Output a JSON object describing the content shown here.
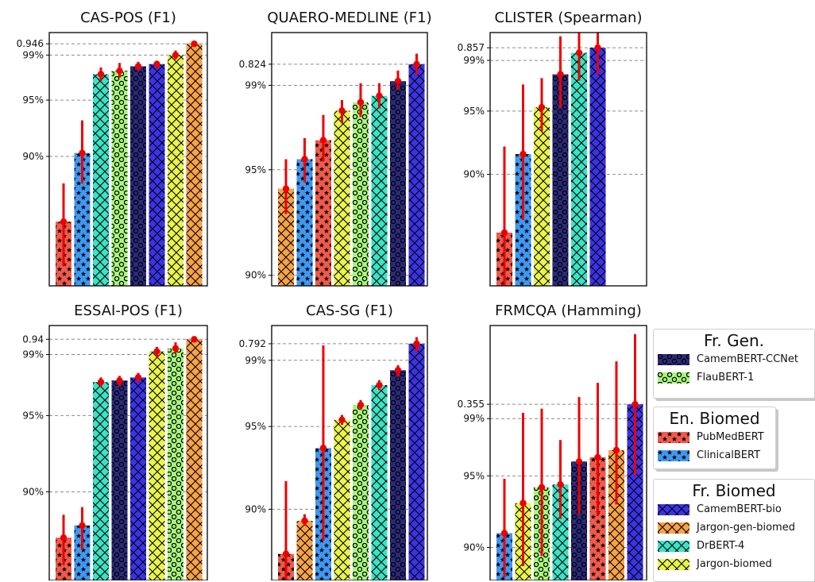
{
  "colors": {
    "CamemBERT-CCNet": "#2b2a7a",
    "FlauBERT-1": "#a8f57c",
    "PubMedBERT": "#f05a4a",
    "ClinicalBERT": "#3f98f2",
    "CamemBERT-bio": "#3b33e6",
    "Jargon-gen-biomed": "#f7a348",
    "DrBERT-4": "#3be3c5",
    "Jargon-biomed": "#eaf54c",
    "error_bar": "#ee0000",
    "reference_line": "#8c8c8c"
  },
  "patterns": {
    "CamemBERT-CCNet": "circles",
    "FlauBERT-1": "circles",
    "PubMedBERT": "stars",
    "ClinicalBERT": "stars",
    "CamemBERT-bio": "cross",
    "Jargon-gen-biomed": "cross",
    "DrBERT-4": "cross",
    "Jargon-biomed": "cross"
  },
  "legend": [
    {
      "title": "Fr. Gen.",
      "items": [
        "CamemBERT-CCNet",
        "FlauBERT-1"
      ]
    },
    {
      "title": "En. Biomed",
      "items": [
        "PubMedBERT",
        "ClinicalBERT"
      ]
    },
    {
      "title": "Fr. Biomed",
      "items": [
        "CamemBERT-bio",
        "Jargon-gen-biomed",
        "DrBERT-4",
        "Jargon-biomed"
      ]
    }
  ],
  "chart_data": [
    {
      "type": "bar",
      "title": "CAS-POS (F1)",
      "best_value_label": "0.946",
      "yticks": [
        "99%",
        "95%",
        "90%"
      ],
      "ylim": [
        78.5,
        101
      ],
      "series": [
        {
          "model": "PubMedBERT",
          "value": 84.2,
          "err": [
            80.3,
            87.6
          ]
        },
        {
          "model": "ClinicalBERT",
          "value": 90.3,
          "err": [
            87.6,
            93.2
          ]
        },
        {
          "model": "DrBERT-4",
          "value": 97.3,
          "err": [
            96.7,
            97.9
          ]
        },
        {
          "model": "FlauBERT-1",
          "value": 97.6,
          "err": [
            97.0,
            98.3
          ]
        },
        {
          "model": "CamemBERT-CCNet",
          "value": 98.0,
          "err": [
            97.6,
            98.4
          ]
        },
        {
          "model": "CamemBERT-bio",
          "value": 98.2,
          "err": [
            97.8,
            98.5
          ]
        },
        {
          "model": "Jargon-biomed",
          "value": 99.0,
          "err": [
            98.6,
            99.4
          ]
        },
        {
          "model": "Jargon-gen-biomed",
          "value": 100,
          "err": [
            100,
            100
          ]
        }
      ]
    },
    {
      "type": "bar",
      "title": "QUAERO-MEDLINE (F1)",
      "best_value_label": "0.824",
      "yticks": [
        "99%",
        "95%",
        "90%"
      ],
      "ylim": [
        89.5,
        101.5
      ],
      "series": [
        {
          "model": "Jargon-gen-biomed",
          "value": 94.1,
          "err": [
            92.9,
            95.5
          ]
        },
        {
          "model": "ClinicalBERT",
          "value": 95.5,
          "err": [
            94.4,
            96.5
          ]
        },
        {
          "model": "PubMedBERT",
          "value": 96.4,
          "err": [
            95.4,
            97.6
          ]
        },
        {
          "model": "Jargon-biomed",
          "value": 97.8,
          "err": [
            97.2,
            98.3
          ]
        },
        {
          "model": "FlauBERT-1",
          "value": 98.2,
          "err": [
            97.5,
            99.1
          ]
        },
        {
          "model": "DrBERT-4",
          "value": 98.5,
          "err": [
            97.9,
            99.1
          ]
        },
        {
          "model": "CamemBERT-CCNet",
          "value": 99.2,
          "err": [
            98.8,
            99.7
          ]
        },
        {
          "model": "CamemBERT-bio",
          "value": 100,
          "err": [
            99.5,
            100.5
          ]
        }
      ]
    },
    {
      "type": "bar",
      "title": "CLISTER (Spearman)",
      "best_value_label": "0.857",
      "yticks": [
        "99%",
        "95%",
        "90%"
      ],
      "ylim": [
        81.2,
        101.2
      ],
      "series": [
        {
          "model": "PubMedBERT",
          "value": 85.4,
          "err": [
            81.2,
            92.2
          ]
        },
        {
          "model": "ClinicalBERT",
          "value": 91.6,
          "err": [
            86.4,
            97.1
          ]
        },
        {
          "model": "Jargon-biomed",
          "value": 95.3,
          "err": [
            93.4,
            97.6
          ]
        },
        {
          "model": "CamemBERT-CCNet",
          "value": 97.9,
          "err": [
            95.3,
            100.9
          ]
        },
        {
          "model": "DrBERT-4",
          "value": 99.6,
          "err": [
            97.4,
            102.1
          ]
        },
        {
          "model": "CamemBERT-bio",
          "value": 100,
          "err": [
            97.9,
            102.6
          ]
        }
      ]
    },
    {
      "type": "bar",
      "title": "ESSAI-POS (F1)",
      "best_value_label": "0.94",
      "yticks": [
        "99%",
        "95%",
        "90%"
      ],
      "ylim": [
        84.2,
        100.9
      ],
      "series": [
        {
          "model": "PubMedBERT",
          "value": 87.0,
          "err": [
            85.2,
            88.5
          ]
        },
        {
          "model": "ClinicalBERT",
          "value": 87.8,
          "err": [
            86.2,
            89.0
          ]
        },
        {
          "model": "DrBERT-4",
          "value": 97.2,
          "err": [
            96.9,
            97.5
          ]
        },
        {
          "model": "CamemBERT-CCNet",
          "value": 97.3,
          "err": [
            96.9,
            97.6
          ]
        },
        {
          "model": "CamemBERT-bio",
          "value": 97.5,
          "err": [
            97.2,
            97.8
          ]
        },
        {
          "model": "Jargon-biomed",
          "value": 99.2,
          "err": [
            98.8,
            99.5
          ]
        },
        {
          "model": "FlauBERT-1",
          "value": 99.4,
          "err": [
            99.1,
            99.8
          ]
        },
        {
          "model": "Jargon-gen-biomed",
          "value": 100,
          "err": [
            99.8,
            100.1
          ]
        }
      ]
    },
    {
      "type": "bar",
      "title": "CAS-SG (F1)",
      "best_value_label": "0.792",
      "yticks": [
        "99%",
        "95%",
        "90%"
      ],
      "ylim": [
        85.7,
        101.1
      ],
      "series": [
        {
          "model": "PubMedBERT",
          "value": 87.3,
          "err": [
            85.2,
            91.7
          ]
        },
        {
          "model": "Jargon-gen-biomed",
          "value": 89.3,
          "err": [
            89.0,
            89.7
          ]
        },
        {
          "model": "ClinicalBERT",
          "value": 93.7,
          "err": [
            88.1,
            99.9
          ]
        },
        {
          "model": "Jargon-biomed",
          "value": 95.4,
          "err": [
            95.1,
            95.7
          ]
        },
        {
          "model": "FlauBERT-1",
          "value": 96.3,
          "err": [
            96.0,
            96.6
          ]
        },
        {
          "model": "DrBERT-4",
          "value": 97.5,
          "err": [
            97.2,
            97.8
          ]
        },
        {
          "model": "CamemBERT-CCNet",
          "value": 98.4,
          "err": [
            98.0,
            98.7
          ]
        },
        {
          "model": "CamemBERT-bio",
          "value": 100,
          "err": [
            99.5,
            100.4
          ]
        }
      ]
    },
    {
      "type": "bar",
      "title": "FRMCQA (Hamming)",
      "best_value_label": "0.355",
      "yticks": [
        "99%",
        "95%",
        "90%"
      ],
      "ylim": [
        87.7,
        105.5
      ],
      "series": [
        {
          "model": "ClinicalBERT",
          "value": 91.0,
          "err": [
            87.9,
            94.8
          ]
        },
        {
          "model": "Jargon-biomed",
          "value": 93.1,
          "err": [
            88.7,
            99.4
          ]
        },
        {
          "model": "FlauBERT-1",
          "value": 94.2,
          "err": [
            89.4,
            99.7
          ]
        },
        {
          "model": "DrBERT-4",
          "value": 94.4,
          "err": [
            92.0,
            97.5
          ]
        },
        {
          "model": "CamemBERT-CCNet",
          "value": 96.0,
          "err": [
            92.3,
            100.5
          ]
        },
        {
          "model": "PubMedBERT",
          "value": 96.3,
          "err": [
            92.2,
            101.5
          ]
        },
        {
          "model": "Jargon-gen-biomed",
          "value": 96.8,
          "err": [
            93.0,
            103.0
          ]
        },
        {
          "model": "CamemBERT-bio",
          "value": 100,
          "err": [
            95.0,
            104.9
          ]
        }
      ]
    }
  ]
}
